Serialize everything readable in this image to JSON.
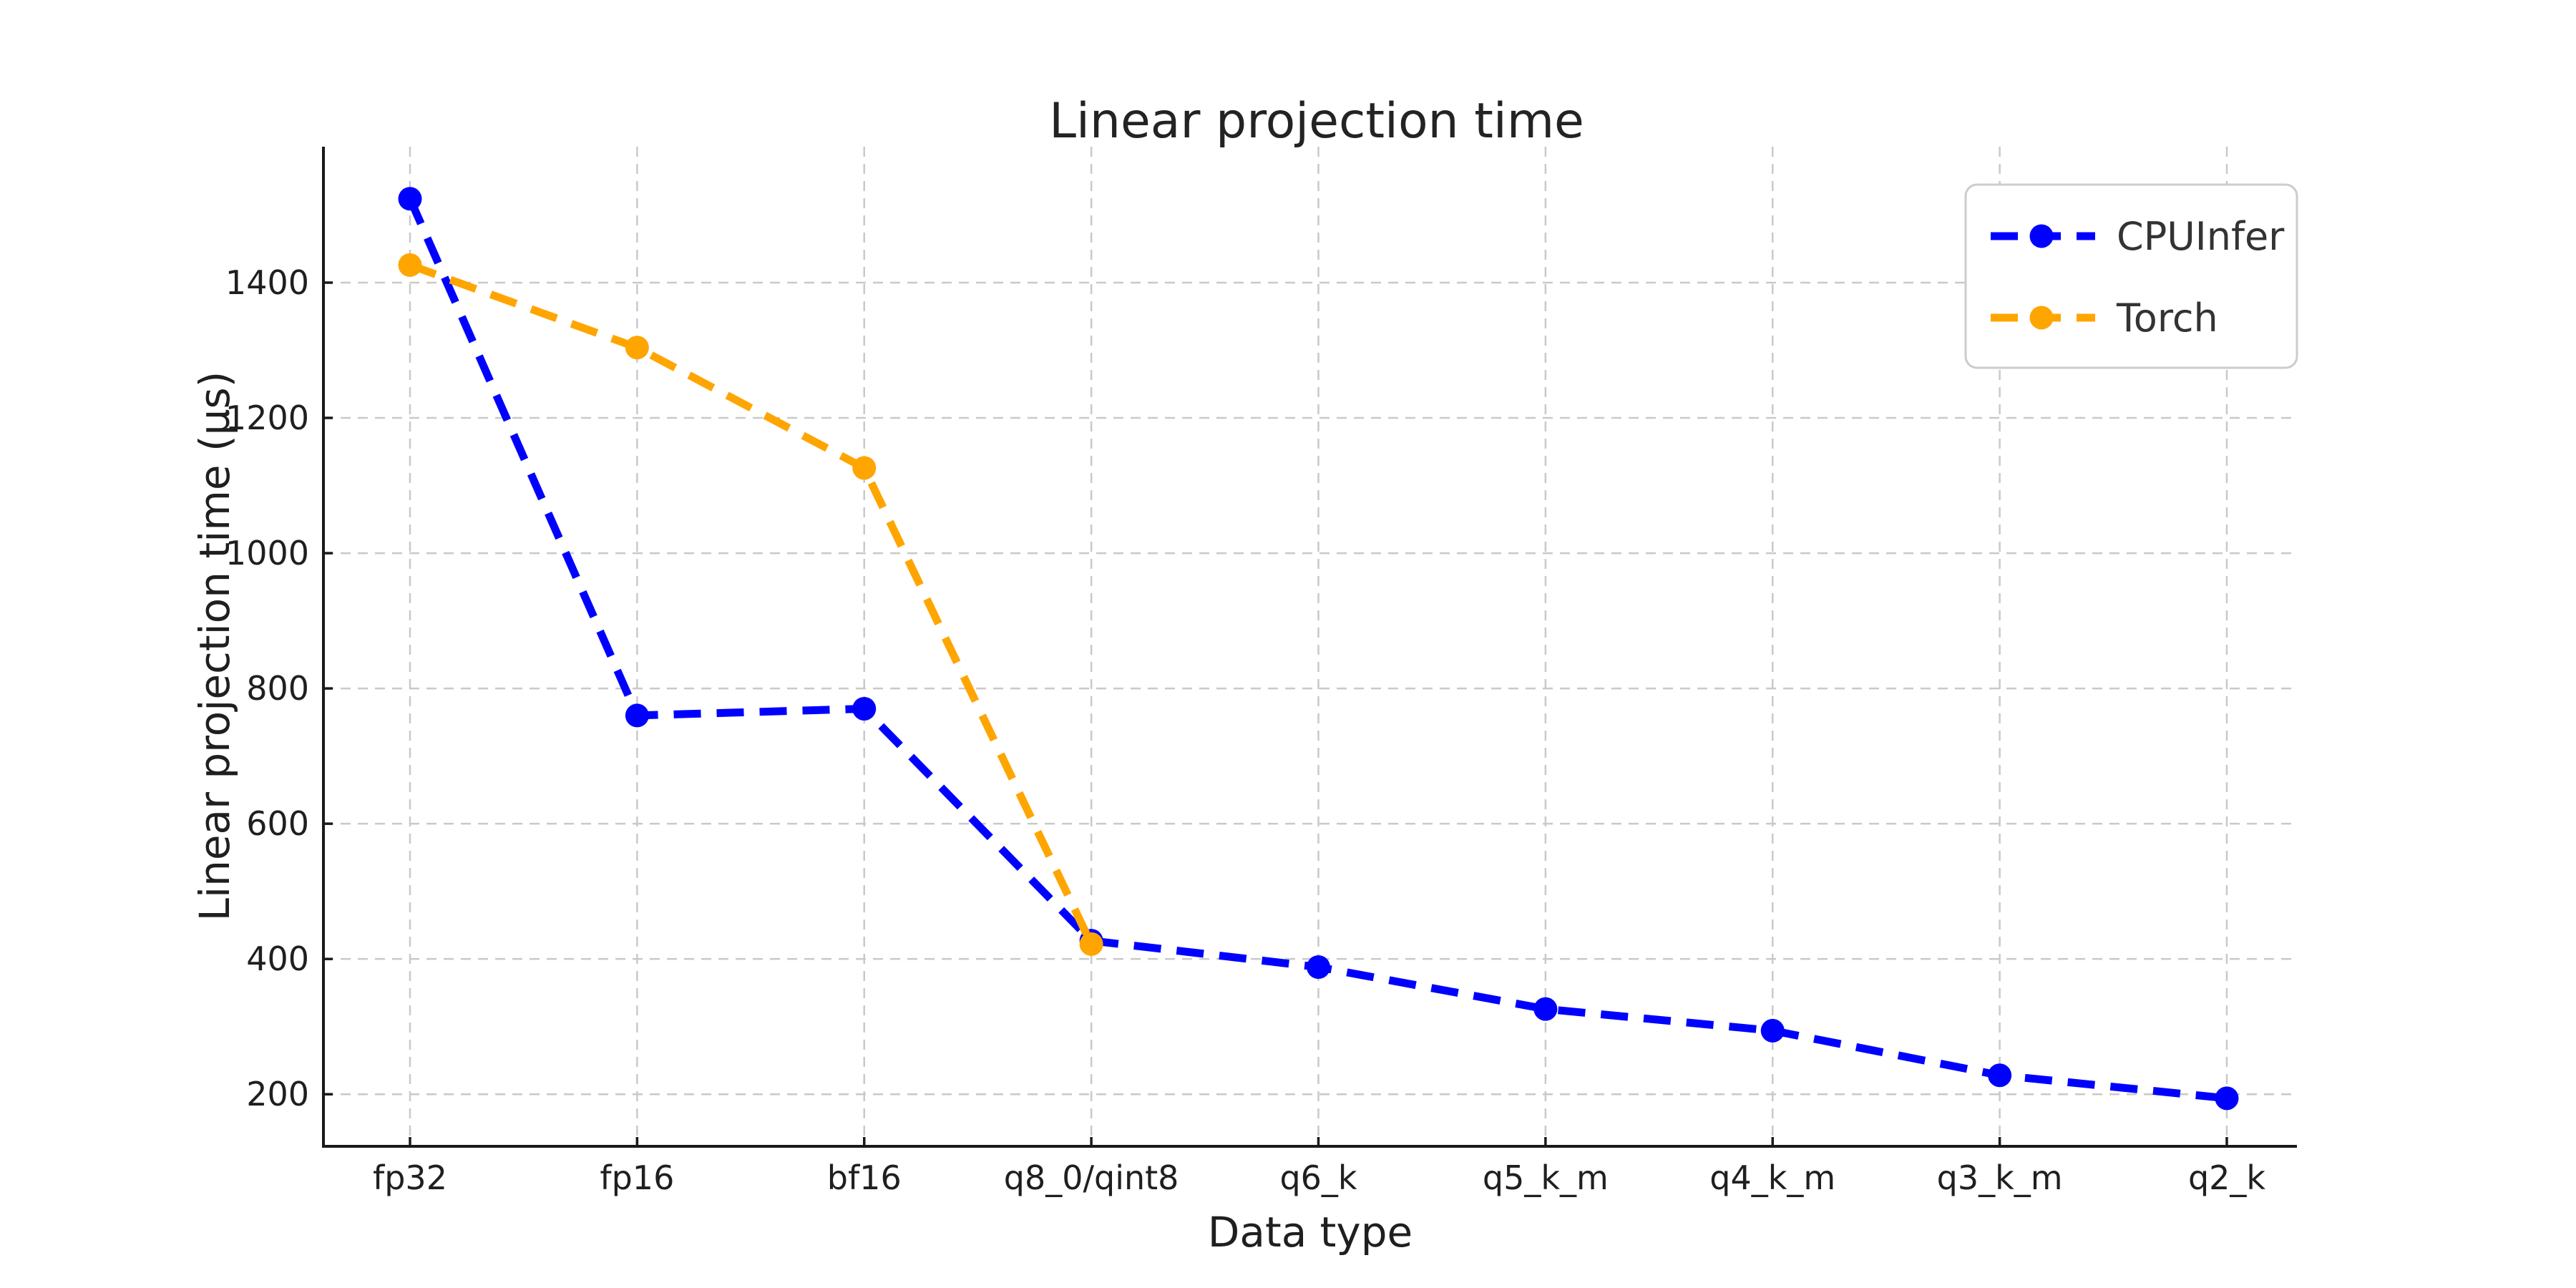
{
  "page": {
    "background": "#ffffff"
  },
  "chart_data": {
    "type": "line",
    "title": "Linear projection time",
    "xlabel": "Data type",
    "ylabel": "Linear projection time (µs)",
    "categories": [
      "fp32",
      "fp16",
      "bf16",
      "q8_0/qint8",
      "q6_k",
      "q5_k_m",
      "q4_k_m",
      "q3_k_m",
      "q2_k"
    ],
    "yticks": [
      200,
      400,
      600,
      800,
      1000,
      1200,
      1400
    ],
    "ylim": [
      123,
      1601
    ],
    "grid": true,
    "grid_style": "dashed",
    "legend_position": "upper right",
    "series": [
      {
        "name": "CPUInfer",
        "color": "#0000ff",
        "line_style": "dashed",
        "marker": "circle",
        "values": [
          1524,
          760,
          770,
          427,
          388,
          326,
          294,
          228,
          194
        ]
      },
      {
        "name": "Torch",
        "color": "#ffa500",
        "line_style": "dashed",
        "marker": "circle",
        "values": [
          1426,
          1304,
          1126,
          422
        ]
      }
    ]
  },
  "colors": {
    "grid": "#c9c9c9",
    "spine": "#1a1a1a",
    "text": "#1f1f1f",
    "legend_border": "#cccccc",
    "legend_text": "#333333"
  }
}
